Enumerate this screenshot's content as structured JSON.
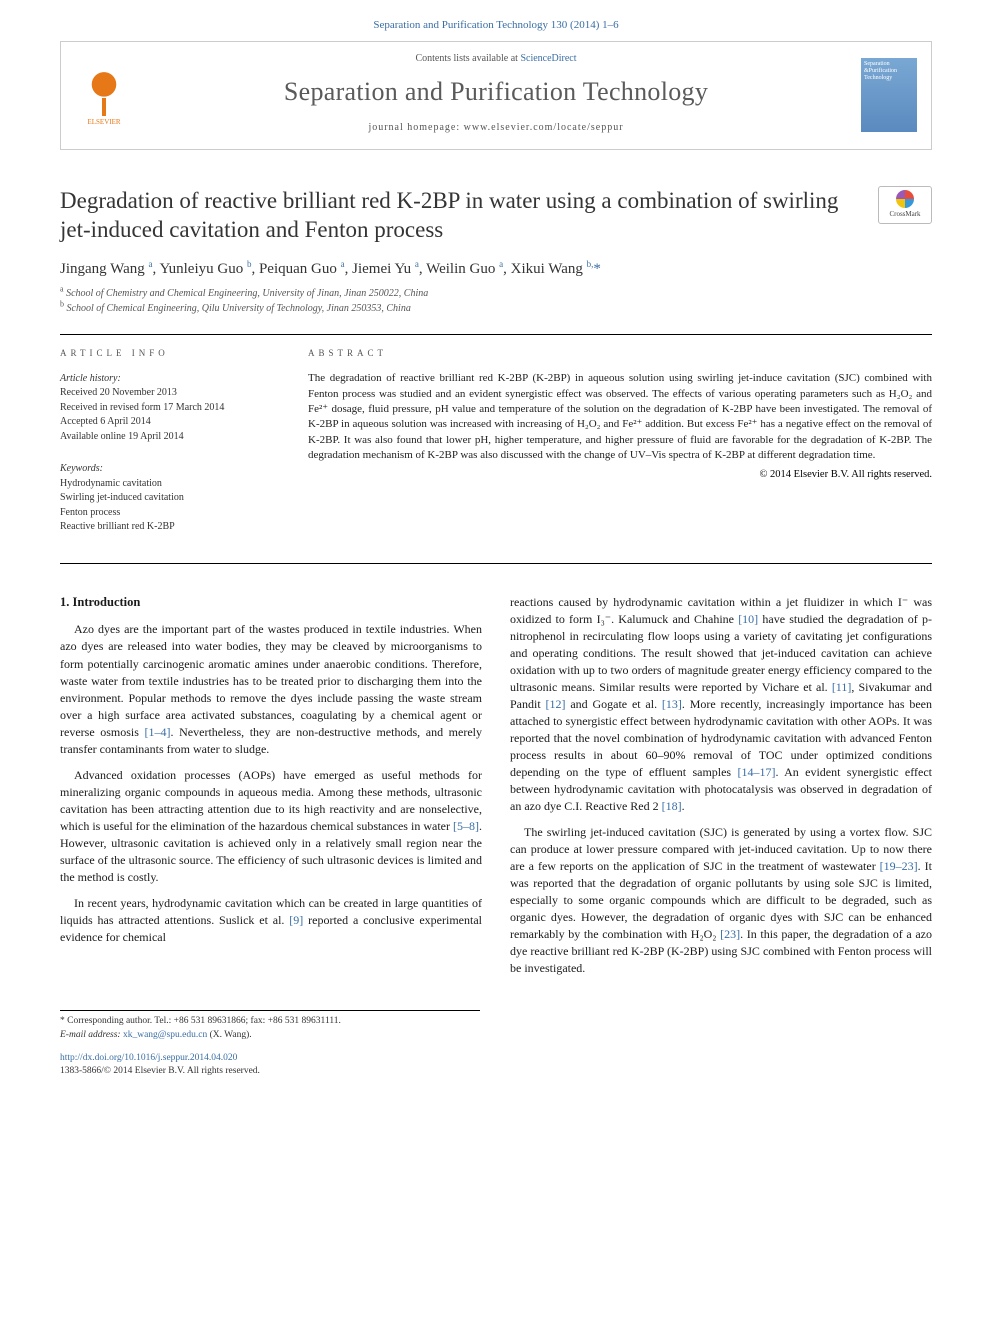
{
  "header": {
    "citation": "Separation and Purification Technology 130 (2014) 1–6",
    "contents_prefix": "Contents lists available at ",
    "contents_link": "ScienceDirect",
    "journal_name": "Separation and Purification Technology",
    "homepage_prefix": "journal homepage: ",
    "homepage_url": "www.elsevier.com/locate/seppur",
    "publisher_label": "ELSEVIER",
    "cover_text": "Separation &Purification Technology",
    "crossmark_label": "CrossMark"
  },
  "article": {
    "title": "Degradation of reactive brilliant red K-2BP in water using a combination of swirling jet-induced cavitation and Fenton process",
    "authors_html": "Jingang Wang <sup>a</sup>, Yunleiyu Guo <sup>b</sup>, Peiquan Guo <sup>a</sup>, Jiemei Yu <sup>a</sup>, Weilin Guo <sup>a</sup>, Xikui Wang <sup>b,</sup><span class='corr-star'>*</span>",
    "affiliations": [
      "a School of Chemistry and Chemical Engineering, University of Jinan, Jinan 250022, China",
      "b School of Chemical Engineering, Qilu University of Technology, Jinan 250353, China"
    ]
  },
  "info": {
    "label": "ARTICLE INFO",
    "history_head": "Article history:",
    "history": [
      "Received 20 November 2013",
      "Received in revised form 17 March 2014",
      "Accepted 6 April 2014",
      "Available online 19 April 2014"
    ],
    "keywords_head": "Keywords:",
    "keywords": [
      "Hydrodynamic cavitation",
      "Swirling jet-induced cavitation",
      "Fenton process",
      "Reactive brilliant red K-2BP"
    ]
  },
  "abstract": {
    "label": "ABSTRACT",
    "text": "The degradation of reactive brilliant red K-2BP (K-2BP) in aqueous solution using swirling jet-induce cavitation (SJC) combined with Fenton process was studied and an evident synergistic effect was observed. The effects of various operating parameters such as H₂O₂ and Fe²⁺ dosage, fluid pressure, pH value and temperature of the solution on the degradation of K-2BP have been investigated. The removal of K-2BP in aqueous solution was increased with increasing of H₂O₂ and Fe²⁺ addition. But excess Fe²⁺ has a negative effect on the removal of K-2BP. It was also found that lower pH, higher temperature, and higher pressure of fluid are favorable for the degradation of K-2BP. The degradation mechanism of K-2BP was also discussed with the change of UV–Vis spectra of K-2BP at different degradation time.",
    "copyright": "© 2014 Elsevier B.V. All rights reserved."
  },
  "body": {
    "section_heading": "1. Introduction",
    "left": [
      "Azo dyes are the important part of the wastes produced in textile industries. When azo dyes are released into water bodies, they may be cleaved by microorganisms to form potentially carcinogenic aromatic amines under anaerobic conditions. Therefore, waste water from textile industries has to be treated prior to discharging them into the environment. Popular methods to remove the dyes include passing the waste stream over a high surface area activated substances, coagulating by a chemical agent or reverse osmosis <span class='ref'>[1–4]</span>. Nevertheless, they are non-destructive methods, and merely transfer contaminants from water to sludge.",
      "Advanced oxidation processes (AOPs) have emerged as useful methods for mineralizing organic compounds in aqueous media. Among these methods, ultrasonic cavitation has been attracting attention due to its high reactivity and are nonselective, which is useful for the elimination of the hazardous chemical substances in water <span class='ref'>[5–8]</span>. However, ultrasonic cavitation is achieved only in a relatively small region near the surface of the ultrasonic source. The efficiency of such ultrasonic devices is limited and the method is costly.",
      "In recent years, hydrodynamic cavitation which can be created in large quantities of liquids has attracted attentions. Suslick et al. <span class='ref'>[9]</span> reported a conclusive experimental evidence for chemical"
    ],
    "right": [
      "reactions caused by hydrodynamic cavitation within a jet fluidizer in which I⁻ was oxidized to form I₃⁻. Kalumuck and Chahine <span class='ref'>[10]</span> have studied the degradation of p-nitrophenol in recirculating flow loops using a variety of cavitating jet configurations and operating conditions. The result showed that jet-induced cavitation can achieve oxidation with up to two orders of magnitude greater energy efficiency compared to the ultrasonic means. Similar results were reported by Vichare et al. <span class='ref'>[11]</span>, Sivakumar and Pandit <span class='ref'>[12]</span> and Gogate et al. <span class='ref'>[13]</span>. More recently, increasingly importance has been attached to synergistic effect between hydrodynamic cavitation with other AOPs. It was reported that the novel combination of hydrodynamic cavitation with advanced Fenton process results in about 60–90% removal of TOC under optimized conditions depending on the type of effluent samples <span class='ref'>[14–17]</span>. An evident synergistic effect between hydrodynamic cavitation with photocatalysis was observed in degradation of an azo dye C.I. Reactive Red 2 <span class='ref'>[18]</span>.",
      "The swirling jet-induced cavitation (SJC) is generated by using a vortex flow. SJC can produce at lower pressure compared with jet-induced cavitation. Up to now there are a few reports on the application of SJC in the treatment of wastewater <span class='ref'>[19–23]</span>. It was reported that the degradation of organic pollutants by using sole SJC is limited, especially to some organic compounds which are difficult to be degraded, such as organic dyes. However, the degradation of organic dyes with SJC can be enhanced remarkably by the combination with H₂O₂ <span class='ref'>[23]</span>. In this paper, the degradation of a azo dye reactive brilliant red K-2BP (K-2BP) using SJC combined with Fenton process will be investigated."
    ]
  },
  "footnote": {
    "corr": "* Corresponding author. Tel.: +86 531 89631866; fax: +86 531 89631111.",
    "email_label": "E-mail address: ",
    "email": "xk_wang@spu.edu.cn",
    "email_suffix": " (X. Wang)."
  },
  "doi": {
    "url": "http://dx.doi.org/10.1016/j.seppur.2014.04.020",
    "issn_line": "1383-5866/© 2014 Elsevier B.V. All rights reserved."
  },
  "colors": {
    "link": "#3a6ea5",
    "elsevier": "#e67817",
    "text": "#1a1a1a",
    "muted": "#555555"
  }
}
